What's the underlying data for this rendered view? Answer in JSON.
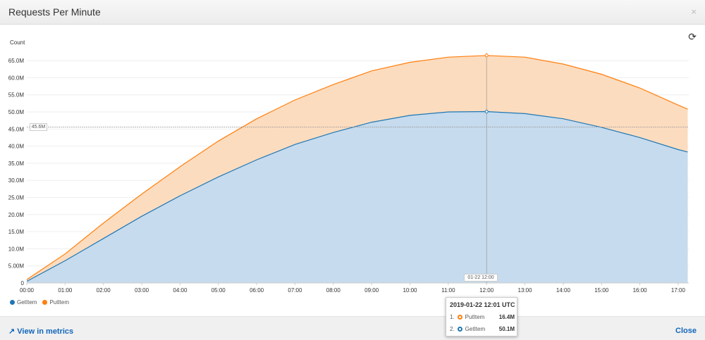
{
  "window": {
    "title": "Requests Per Minute",
    "close_icon": "×",
    "refresh_icon": "refresh-icon"
  },
  "footer": {
    "view_in_metrics": "View in metrics",
    "close": "Close"
  },
  "crosshair": {
    "x_label": "01-22 12:00",
    "y_label": "45.6M"
  },
  "tooltip": {
    "title": "2019-01-22 12:01 UTC",
    "rows": [
      {
        "index": "1.",
        "name": "PutItem",
        "value": "16.4M",
        "color": "#ff7f0e"
      },
      {
        "index": "2.",
        "name": "GetItem",
        "value": "50.1M",
        "color": "#1f77b4"
      }
    ]
  },
  "chart_data": {
    "type": "area",
    "stacked": true,
    "ylabel": "Count",
    "grid": true,
    "legend_placement": "bottom-left",
    "ylim": [
      0,
      65000000
    ],
    "yticks": [
      "0",
      "5.00M",
      "10.0M",
      "15.0M",
      "20.0M",
      "25.0M",
      "30.0M",
      "35.0M",
      "40.0M",
      "45.0M",
      "50.0M",
      "55.0M",
      "60.0M",
      "65.0M"
    ],
    "xticks": [
      "00:00",
      "01:00",
      "02:00",
      "03:00",
      "04:00",
      "05:00",
      "06:00",
      "07:00",
      "08:00",
      "09:00",
      "10:00",
      "11:00",
      "12:00",
      "13:00",
      "14:00",
      "15:00",
      "16:00",
      "17:00"
    ],
    "x_hours": [
      0,
      1,
      2,
      3,
      4,
      5,
      6,
      7,
      8,
      9,
      10,
      11,
      12,
      13,
      14,
      15,
      16,
      17,
      17.25
    ],
    "series": [
      {
        "name": "GetItem",
        "color": "#1f77b4",
        "fill": "#c6dbed",
        "values_millions": [
          0.5,
          6.5,
          13,
          19.5,
          25.5,
          31,
          36,
          40.5,
          44,
          47,
          49,
          50,
          50.1,
          49.5,
          48,
          45.5,
          42.5,
          39,
          38.3
        ]
      },
      {
        "name": "PutItem",
        "color": "#ff7f0e",
        "fill": "#fcdcbf",
        "values_millions": [
          0.5,
          2,
          4.5,
          6.5,
          8.5,
          10.5,
          12,
          13,
          14,
          15,
          15.5,
          16,
          16.4,
          16.5,
          16,
          15.5,
          14.5,
          13,
          12.5
        ]
      }
    ]
  }
}
